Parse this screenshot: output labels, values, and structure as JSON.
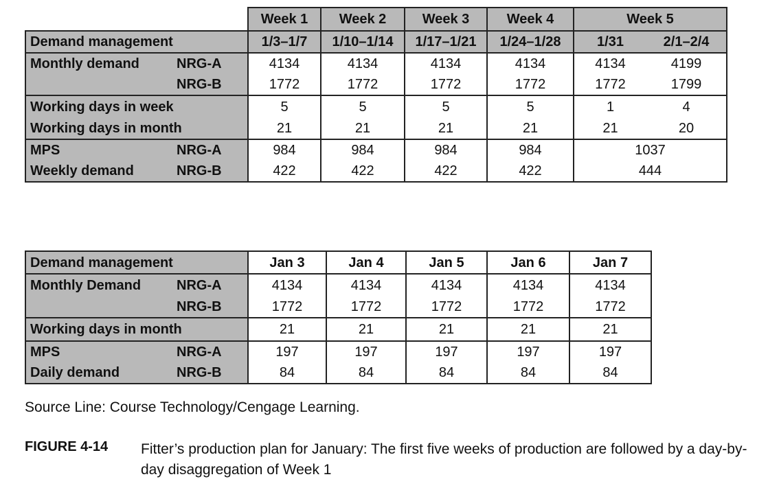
{
  "weekly_table": {
    "week_headers": [
      "Week 1",
      "Week 2",
      "Week 3",
      "Week 4",
      "Week 5"
    ],
    "title": "Demand management",
    "date_headers": [
      "1/3–1/7",
      "1/10–1/14",
      "1/17–1/21",
      "1/24–1/28",
      "1/31",
      "2/1–2/4"
    ],
    "monthly_demand_label": "Monthly demand",
    "nrg_a": "NRG-A",
    "nrg_b": "NRG-B",
    "monthly_demand_a": [
      "4134",
      "4134",
      "4134",
      "4134",
      "4134",
      "4199"
    ],
    "monthly_demand_b": [
      "1772",
      "1772",
      "1772",
      "1772",
      "1772",
      "1799"
    ],
    "working_days_week_label": "Working days in week",
    "working_days_week": [
      "5",
      "5",
      "5",
      "5",
      "1",
      "4"
    ],
    "working_days_month_label": "Working days in month",
    "working_days_month": [
      "21",
      "21",
      "21",
      "21",
      "21",
      "20"
    ],
    "mps_label": "MPS",
    "weekly_demand_label": "Weekly demand",
    "mps_a": [
      "984",
      "984",
      "984",
      "984",
      "1037"
    ],
    "mps_b": [
      "422",
      "422",
      "422",
      "422",
      "444"
    ]
  },
  "daily_table": {
    "title": "Demand management",
    "day_headers": [
      "Jan 3",
      "Jan 4",
      "Jan 5",
      "Jan 6",
      "Jan 7"
    ],
    "monthly_demand_label": "Monthly Demand",
    "nrg_a": "NRG-A",
    "nrg_b": "NRG-B",
    "monthly_demand_a": [
      "4134",
      "4134",
      "4134",
      "4134",
      "4134"
    ],
    "monthly_demand_b": [
      "1772",
      "1772",
      "1772",
      "1772",
      "1772"
    ],
    "working_days_month_label": "Working days in month",
    "working_days_month": [
      "21",
      "21",
      "21",
      "21",
      "21"
    ],
    "mps_label": "MPS",
    "daily_demand_label": "Daily demand",
    "mps_a": [
      "197",
      "197",
      "197",
      "197",
      "197"
    ],
    "mps_b": [
      "84",
      "84",
      "84",
      "84",
      "84"
    ]
  },
  "source_line": "Source Line: Course Technology/Cengage Learning.",
  "figure": {
    "label": "FIGURE 4-14",
    "caption": "Fitter’s production plan for January: The first five weeks of production are followed by a day-by-day disaggregation of Week 1"
  }
}
